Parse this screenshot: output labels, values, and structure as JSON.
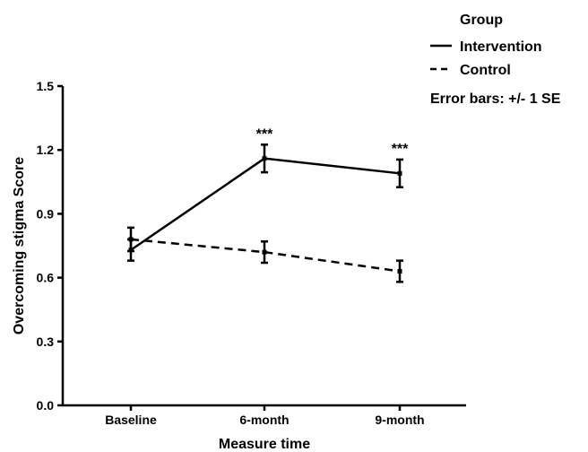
{
  "chart_data": {
    "type": "line",
    "categories": [
      "Baseline",
      "6-month",
      "9-month"
    ],
    "xlabel": "Measure time",
    "ylabel": "Overcoming stigma Score",
    "ylim": [
      0.0,
      1.5
    ],
    "yticks": [
      "0.0",
      "0.3",
      "0.6",
      "0.9",
      "1.2",
      "1.5"
    ],
    "grid": false,
    "legend": {
      "title": "Group",
      "placement": "top-right",
      "note": "Error bars: +/- 1 SE"
    },
    "series": [
      {
        "name": "Intervention",
        "style": "solid",
        "values": [
          0.73,
          1.16,
          1.09
        ],
        "se": [
          0.05,
          0.065,
          0.065
        ],
        "annotations": [
          "",
          "***",
          "***"
        ]
      },
      {
        "name": "Control",
        "style": "dashed",
        "values": [
          0.78,
          0.72,
          0.63
        ],
        "se": [
          0.055,
          0.05,
          0.05
        ],
        "annotations": [
          "",
          "",
          ""
        ]
      }
    ],
    "colors": {
      "line": "#000000",
      "background": "#ffffff"
    }
  }
}
